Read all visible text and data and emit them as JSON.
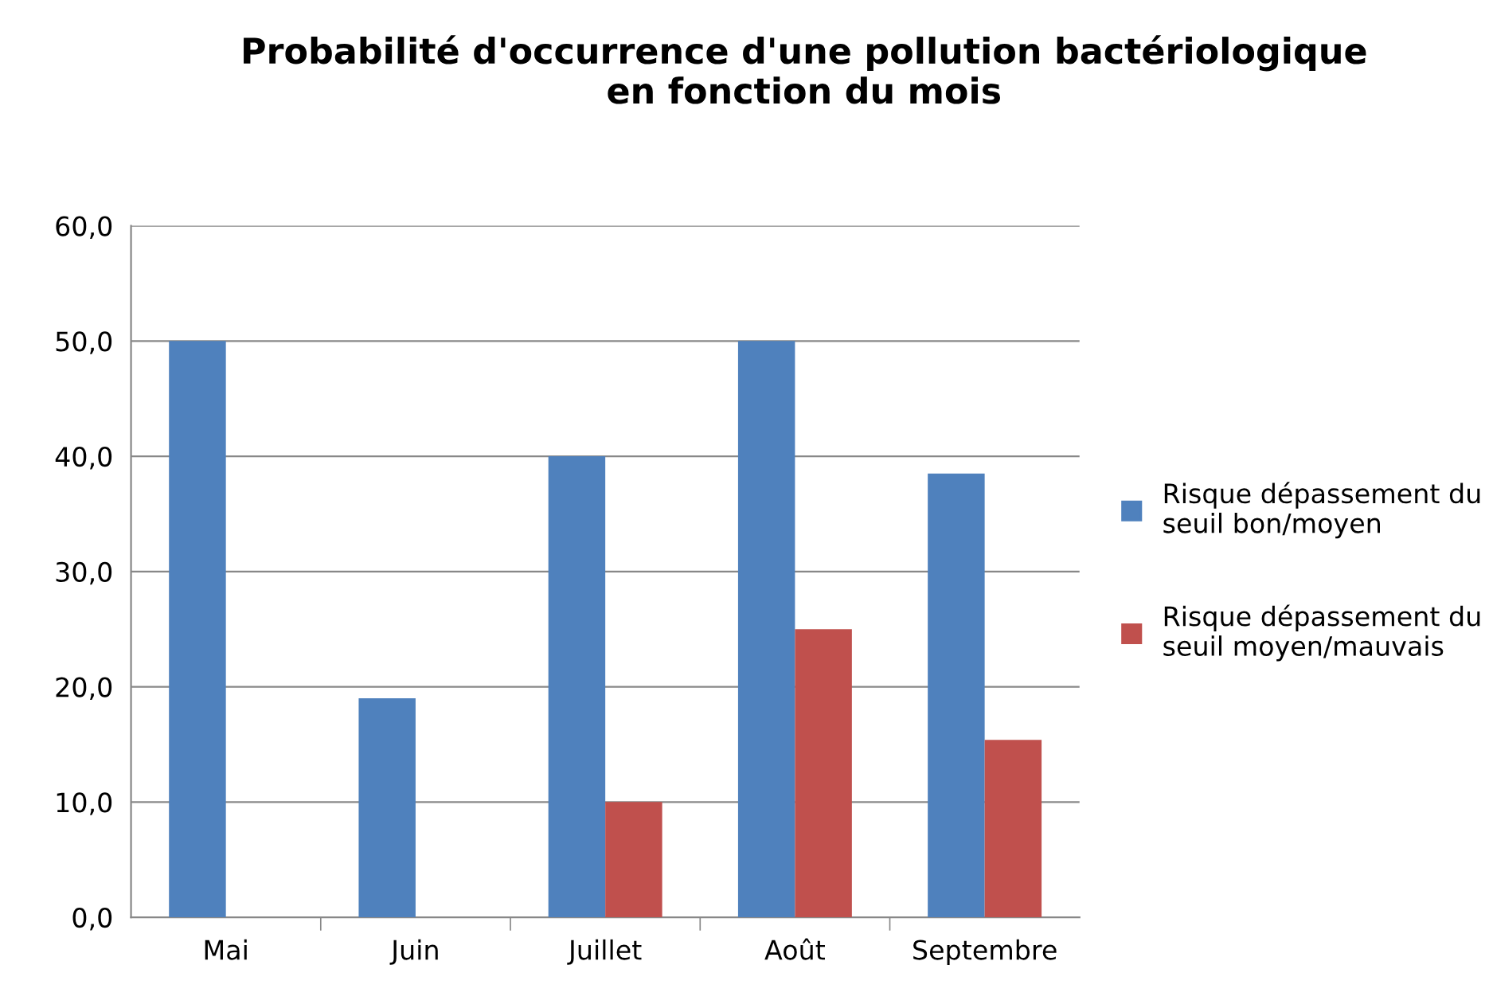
{
  "chart_data": {
    "type": "bar",
    "title": "Probabilité d'occurrence d'une pollution bactériologique\nen fonction du mois",
    "categories": [
      "Mai",
      "Juin",
      "Juillet",
      "Août",
      "Septembre"
    ],
    "series": [
      {
        "name": "Risque dépassement du\nseuil bon/moyen",
        "color": "#4f81bd",
        "values": [
          50,
          19,
          40,
          50,
          38.5
        ]
      },
      {
        "name": "Risque dépassement du\nseuil moyen/mauvais",
        "color": "#c0504d",
        "values": [
          0,
          0,
          10,
          25,
          15.4
        ]
      }
    ],
    "ylim": [
      0,
      60
    ],
    "yticks": [
      {
        "value": 0,
        "label": "0,0"
      },
      {
        "value": 10,
        "label": "10,0"
      },
      {
        "value": 20,
        "label": "20,0"
      },
      {
        "value": 30,
        "label": "30,0"
      },
      {
        "value": 40,
        "label": "40,0"
      },
      {
        "value": 50,
        "label": "50,0"
      },
      {
        "value": 60,
        "label": "60,0"
      }
    ],
    "grid": "y",
    "legend": "right"
  }
}
